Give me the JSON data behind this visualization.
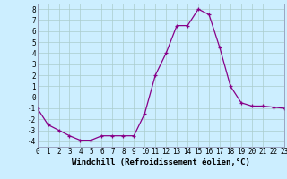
{
  "x": [
    0,
    1,
    2,
    3,
    4,
    5,
    6,
    7,
    8,
    9,
    10,
    11,
    12,
    13,
    14,
    15,
    16,
    17,
    18,
    19,
    20,
    21,
    22,
    23
  ],
  "y": [
    -1.0,
    -2.5,
    -3.0,
    -3.5,
    -3.9,
    -3.9,
    -3.5,
    -3.5,
    -3.5,
    -3.5,
    -1.5,
    2.0,
    4.0,
    6.5,
    6.5,
    8.0,
    7.5,
    4.5,
    1.0,
    -0.5,
    -0.8,
    -0.8,
    -0.9,
    -1.0
  ],
  "xlim": [
    0,
    23
  ],
  "ylim": [
    -4.5,
    8.5
  ],
  "xticks": [
    0,
    1,
    2,
    3,
    4,
    5,
    6,
    7,
    8,
    9,
    10,
    11,
    12,
    13,
    14,
    15,
    16,
    17,
    18,
    19,
    20,
    21,
    22,
    23
  ],
  "yticks": [
    -4,
    -3,
    -2,
    -1,
    0,
    1,
    2,
    3,
    4,
    5,
    6,
    7,
    8
  ],
  "xlabel": "Windchill (Refroidissement éolien,°C)",
  "line_color": "#880088",
  "marker": "+",
  "bg_color": "#cceeff",
  "grid_color": "#aacccc",
  "tick_fontsize": 5.5,
  "xlabel_fontsize": 6.5
}
